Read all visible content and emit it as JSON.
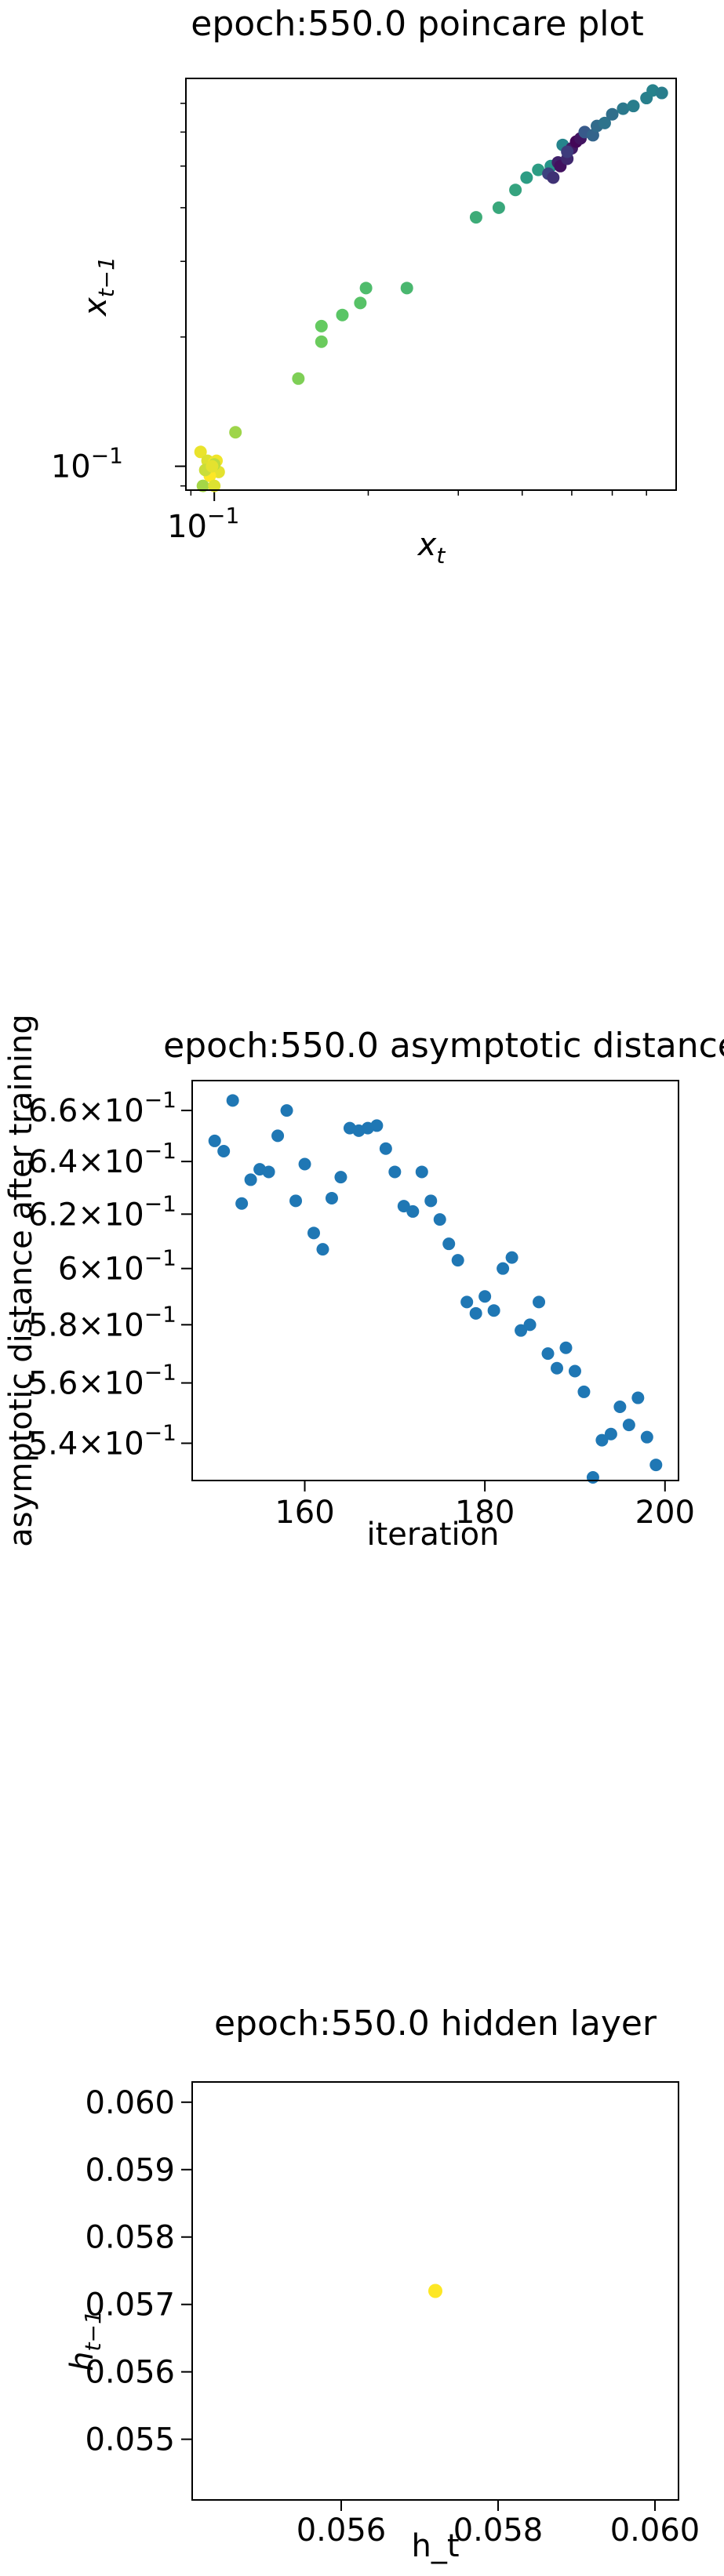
{
  "chart_data": [
    {
      "type": "scatter",
      "title": "epoch:550.0 poincare plot",
      "xlabel_base": "x",
      "xlabel_sub": "t",
      "ylabel_base": "x",
      "ylabel_sub": "t−1",
      "scale": "log",
      "xlim": [
        0.088,
        0.8
      ],
      "ylim": [
        0.088,
        0.8
      ],
      "ticks_x": [
        {
          "value": 0.1,
          "base": "10",
          "exp": "−1"
        }
      ],
      "ticks_y": [
        {
          "value": 0.1,
          "base": "10",
          "exp": "−1"
        }
      ],
      "colormap": "viridis",
      "x": [
        0.094,
        0.097,
        0.099,
        0.1,
        0.101,
        0.102,
        0.098,
        0.096,
        0.1,
        0.099,
        0.095,
        0.1,
        0.11,
        0.146,
        0.162,
        0.162,
        0.178,
        0.193,
        0.198,
        0.238,
        0.325,
        0.36,
        0.388,
        0.408,
        0.43,
        0.455,
        0.45,
        0.46,
        0.47,
        0.475,
        0.48,
        0.49,
        0.5,
        0.51,
        0.52,
        0.49,
        0.53,
        0.55,
        0.56,
        0.58,
        0.6,
        0.63,
        0.66,
        0.7,
        0.72,
        0.75
      ],
      "y": [
        0.108,
        0.103,
        0.099,
        0.102,
        0.103,
        0.097,
        0.095,
        0.098,
        0.101,
        0.1,
        0.09,
        0.09,
        0.12,
        0.16,
        0.195,
        0.212,
        0.225,
        0.24,
        0.26,
        0.26,
        0.38,
        0.4,
        0.44,
        0.47,
        0.49,
        0.5,
        0.48,
        0.47,
        0.51,
        0.5,
        0.56,
        0.52,
        0.55,
        0.57,
        0.58,
        0.54,
        0.6,
        0.59,
        0.62,
        0.63,
        0.66,
        0.68,
        0.69,
        0.72,
        0.75,
        0.74
      ],
      "color_values": [
        0.97,
        0.95,
        0.9,
        0.99,
        0.98,
        0.96,
        1.0,
        0.92,
        0.9,
        0.96,
        0.86,
        0.95,
        0.85,
        0.8,
        0.77,
        0.76,
        0.73,
        0.72,
        0.69,
        0.67,
        0.62,
        0.6,
        0.58,
        0.55,
        0.55,
        0.52,
        0.2,
        0.15,
        0.1,
        0.05,
        0.45,
        0.12,
        0.08,
        0.02,
        0.06,
        0.18,
        0.28,
        0.32,
        0.35,
        0.38,
        0.36,
        0.4,
        0.42,
        0.43,
        0.44,
        0.42
      ]
    },
    {
      "type": "scatter",
      "title": "epoch:550.0 asymptotic distance",
      "xlabel": "iteration",
      "ylabel": "asymptotic distance after training",
      "scale_y": "log",
      "xlim": [
        147.5,
        201.5
      ],
      "ylim": [
        0.528,
        0.672
      ],
      "ticks_x": [
        {
          "value": 160,
          "label": "160"
        },
        {
          "value": 180,
          "label": "180"
        },
        {
          "value": 200,
          "label": "200"
        }
      ],
      "ticks_y": [
        {
          "value": 0.66,
          "mant": "6.6",
          "exp": "−1"
        },
        {
          "value": 0.64,
          "mant": "6.4",
          "exp": "−1"
        },
        {
          "value": 0.62,
          "mant": "6.2",
          "exp": "−1"
        },
        {
          "value": 0.6,
          "mant": "6",
          "exp": "−1"
        },
        {
          "value": 0.58,
          "mant": "5.8",
          "exp": "−1"
        },
        {
          "value": 0.56,
          "mant": "5.6",
          "exp": "−1"
        },
        {
          "value": 0.54,
          "mant": "5.4",
          "exp": "−1"
        }
      ],
      "marker_color": "#1f77b4",
      "x": [
        150,
        151,
        152,
        153,
        154,
        155,
        156,
        157,
        158,
        159,
        160,
        161,
        162,
        163,
        164,
        165,
        166,
        167,
        168,
        169,
        170,
        171,
        172,
        173,
        174,
        175,
        176,
        177,
        178,
        179,
        180,
        181,
        182,
        183,
        184,
        185,
        186,
        187,
        188,
        189,
        190,
        191,
        192,
        193,
        194,
        195,
        196,
        197,
        198,
        199
      ],
      "y": [
        0.648,
        0.644,
        0.664,
        0.624,
        0.633,
        0.637,
        0.636,
        0.65,
        0.66,
        0.625,
        0.639,
        0.613,
        0.607,
        0.626,
        0.634,
        0.653,
        0.652,
        0.653,
        0.654,
        0.645,
        0.636,
        0.623,
        0.621,
        0.636,
        0.625,
        0.618,
        0.609,
        0.603,
        0.588,
        0.584,
        0.59,
        0.585,
        0.6,
        0.604,
        0.578,
        0.58,
        0.588,
        0.57,
        0.565,
        0.572,
        0.564,
        0.557,
        0.529,
        0.541,
        0.543,
        0.552,
        0.546,
        0.555,
        0.542,
        0.533
      ]
    },
    {
      "type": "scatter",
      "title": "epoch:550.0 hidden layer",
      "xlabel": "h_t",
      "ylabel_base": "h",
      "ylabel_sub": "t−1",
      "xlim": [
        0.0541,
        0.0603
      ],
      "ylim": [
        0.0541,
        0.0603
      ],
      "ticks_x": [
        {
          "value": 0.056,
          "label": "0.056"
        },
        {
          "value": 0.058,
          "label": "0.058"
        },
        {
          "value": 0.06,
          "label": "0.060"
        }
      ],
      "ticks_y": [
        {
          "value": 0.06,
          "label": "0.060"
        },
        {
          "value": 0.059,
          "label": "0.059"
        },
        {
          "value": 0.058,
          "label": "0.058"
        },
        {
          "value": 0.057,
          "label": "0.057"
        },
        {
          "value": 0.056,
          "label": "0.056"
        },
        {
          "value": 0.055,
          "label": "0.055"
        }
      ],
      "marker_color": "#fde725",
      "x": [
        0.0572
      ],
      "y": [
        0.0572
      ]
    }
  ]
}
